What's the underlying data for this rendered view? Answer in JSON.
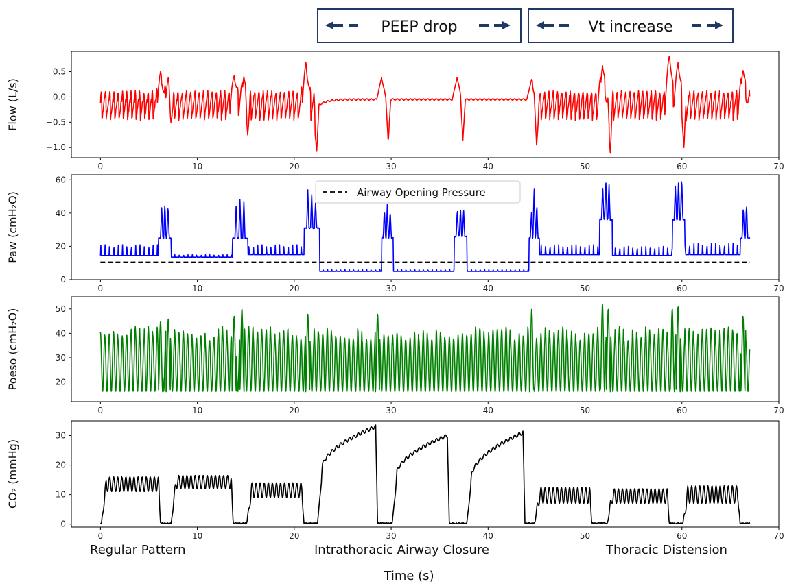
{
  "annotations": {
    "peep_drop": "PEEP drop",
    "vt_increase": "Vt increase",
    "arrow_color": "#1f3864"
  },
  "footer": {
    "labels": [
      "Regular Pattern",
      "Intrathoracic Airway Closure",
      "Thoracic Distension"
    ],
    "xlabel": "Time (s)"
  },
  "chart_data": [
    {
      "type": "line",
      "id": "flow",
      "ylabel": "Flow (L/s)",
      "color": "#ff0000",
      "xlim": [
        -3,
        70
      ],
      "ylim": [
        -1.2,
        0.9
      ],
      "xticks": [
        0,
        10,
        20,
        30,
        40,
        50,
        60,
        70
      ],
      "yticks": [
        0.5,
        0.0,
        -0.5,
        -1.0
      ],
      "ytick_labels": [
        "0.5",
        "0.0",
        "−0.5",
        "−1.0"
      ],
      "waveform": {
        "baseline": -0.18,
        "amp_hi": 0.12,
        "amp_lo": -0.45,
        "period": 0.44,
        "segments": [
          {
            "start": 0,
            "end": 22.2,
            "kind": "regular"
          },
          {
            "start": 22.2,
            "end": 44.5,
            "kind": "closure",
            "baseline": -0.05
          },
          {
            "start": 44.5,
            "end": 67,
            "kind": "distension"
          }
        ],
        "peaks": [
          {
            "x": 6.2,
            "y": 0.5
          },
          {
            "x": 7.0,
            "y": 0.38
          },
          {
            "x": 13.8,
            "y": 0.42
          },
          {
            "x": 14.8,
            "y": 0.4
          },
          {
            "x": 21.2,
            "y": 0.68
          },
          {
            "x": 29.0,
            "y": 0.38
          },
          {
            "x": 36.8,
            "y": 0.38
          },
          {
            "x": 44.5,
            "y": 0.36
          },
          {
            "x": 51.8,
            "y": 0.62
          },
          {
            "x": 58.7,
            "y": 0.85
          },
          {
            "x": 59.6,
            "y": 0.68
          },
          {
            "x": 66.3,
            "y": 0.55
          }
        ],
        "troughs": [
          {
            "x": 7.3,
            "y": -0.55
          },
          {
            "x": 15.2,
            "y": -0.75
          },
          {
            "x": 22.3,
            "y": -1.15
          },
          {
            "x": 29.7,
            "y": -0.9
          },
          {
            "x": 37.4,
            "y": -0.85
          },
          {
            "x": 45.0,
            "y": -0.95
          },
          {
            "x": 52.6,
            "y": -1.1
          },
          {
            "x": 60.2,
            "y": -1.0
          }
        ]
      }
    },
    {
      "type": "line",
      "id": "paw",
      "ylabel": "Paw (cmH₂O)",
      "color": "#0000ff",
      "xlim": [
        -3,
        70
      ],
      "ylim": [
        0,
        63
      ],
      "xticks": [
        0,
        10,
        20,
        30,
        40,
        50,
        60,
        70
      ],
      "yticks": [
        0,
        20,
        40,
        60
      ],
      "ytick_labels": [
        "0",
        "20",
        "40",
        "60"
      ],
      "legend": {
        "label": "Airway Opening Pressure",
        "position": "upper center"
      },
      "reference_line": {
        "y": 10.5,
        "style": "dashed",
        "color": "#000000"
      },
      "levels": [
        {
          "start": 0,
          "end": 6,
          "base": 14.5,
          "ripple": 21
        },
        {
          "start": 6,
          "end": 7.3,
          "base": 25,
          "spikes": [
            44,
            46,
            45
          ]
        },
        {
          "start": 7.3,
          "end": 13.6,
          "base": 13.5,
          "ripple": 15
        },
        {
          "start": 13.6,
          "end": 15.2,
          "base": 25,
          "spikes": [
            44,
            48,
            47
          ]
        },
        {
          "start": 15.2,
          "end": 21.0,
          "base": 15,
          "ripple": 21
        },
        {
          "start": 21.0,
          "end": 22.6,
          "base": 31,
          "spikes": [
            54,
            51,
            46
          ]
        },
        {
          "start": 22.6,
          "end": 29.0,
          "base": 5,
          "ripple": 6
        },
        {
          "start": 29.0,
          "end": 30.2,
          "base": 25,
          "spikes": [
            43,
            45,
            42
          ]
        },
        {
          "start": 30.2,
          "end": 36.5,
          "base": 5,
          "ripple": 6
        },
        {
          "start": 36.5,
          "end": 37.8,
          "base": 26,
          "spikes": [
            43,
            43,
            42
          ]
        },
        {
          "start": 37.8,
          "end": 44.2,
          "base": 5,
          "ripple": 6
        },
        {
          "start": 44.2,
          "end": 45.3,
          "base": 25,
          "spikes": [
            41,
            57,
            46
          ]
        },
        {
          "start": 45.3,
          "end": 51.5,
          "base": 15,
          "ripple": 21
        },
        {
          "start": 51.5,
          "end": 52.8,
          "base": 36,
          "spikes": [
            57,
            60,
            58
          ]
        },
        {
          "start": 52.8,
          "end": 59.0,
          "base": 14.5,
          "ripple": 20
        },
        {
          "start": 59.0,
          "end": 60.3,
          "base": 36,
          "spikes": [
            57,
            60,
            62
          ]
        },
        {
          "start": 60.3,
          "end": 66.0,
          "base": 15,
          "ripple": 22
        },
        {
          "start": 66.0,
          "end": 67.0,
          "base": 25,
          "spikes": [
            44,
            46
          ]
        }
      ]
    },
    {
      "type": "line",
      "id": "poeso",
      "ylabel": "Poeso (cmH₂O)",
      "color": "#008000",
      "xlim": [
        -3,
        70
      ],
      "ylim": [
        12,
        55
      ],
      "xticks": [
        0,
        10,
        20,
        30,
        40,
        50,
        60,
        70
      ],
      "yticks": [
        20,
        30,
        40,
        50
      ],
      "ytick_labels": [
        "20",
        "30",
        "40",
        "50"
      ],
      "waveform": {
        "period": 0.45,
        "trough": 16,
        "crest": 41,
        "highlights": [
          {
            "x": 6.2,
            "y": 45
          },
          {
            "x": 7.0,
            "y": 46
          },
          {
            "x": 13.8,
            "y": 47
          },
          {
            "x": 14.6,
            "y": 50
          },
          {
            "x": 21.4,
            "y": 48
          },
          {
            "x": 28.6,
            "y": 48
          },
          {
            "x": 44.5,
            "y": 50
          },
          {
            "x": 51.8,
            "y": 52
          },
          {
            "x": 52.4,
            "y": 50
          },
          {
            "x": 59.0,
            "y": 50
          },
          {
            "x": 59.6,
            "y": 51
          },
          {
            "x": 66.3,
            "y": 47
          }
        ]
      }
    },
    {
      "type": "line",
      "id": "co2",
      "ylabel": "CO₂ (mmHg)",
      "color": "#000000",
      "xlim": [
        -3,
        70
      ],
      "ylim": [
        -1,
        35
      ],
      "xticks": [
        0,
        10,
        20,
        30,
        40,
        50,
        60,
        70
      ],
      "yticks": [
        0,
        10,
        20,
        30
      ],
      "ytick_labels": [
        "0",
        "10",
        "20",
        "30"
      ],
      "plateaus": [
        {
          "start": 0.5,
          "end": 6.0,
          "low": 11,
          "high": 16
        },
        {
          "start": 7.7,
          "end": 13.5,
          "low": 12,
          "high": 16.5
        },
        {
          "start": 15.5,
          "end": 20.8,
          "low": 9,
          "high": 14
        },
        {
          "start": 22.8,
          "end": 28.4,
          "ramp_from": 18,
          "ramp_to": 33
        },
        {
          "start": 30.5,
          "end": 35.8,
          "ramp_from": 16,
          "ramp_to": 30
        },
        {
          "start": 38.2,
          "end": 43.6,
          "ramp_from": 15,
          "ramp_to": 31
        },
        {
          "start": 45.2,
          "end": 50.5,
          "low": 7,
          "high": 12.5
        },
        {
          "start": 52.7,
          "end": 58.5,
          "low": 7,
          "high": 12
        },
        {
          "start": 60.5,
          "end": 65.8,
          "low": 7,
          "high": 13
        }
      ]
    }
  ]
}
